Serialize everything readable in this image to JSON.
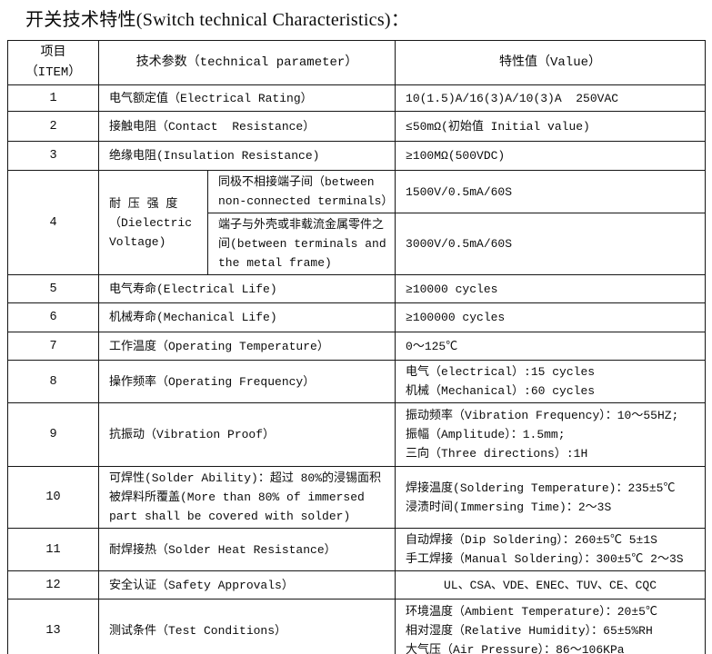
{
  "title": "开关技术特性(Switch technical Characteristics)：",
  "table": {
    "header": {
      "item": "项目\n（ITEM）",
      "param": "技术参数（technical parameter）",
      "value": "特性值（Value）"
    },
    "rows": [
      {
        "item": "1",
        "param": "电气额定值（Electrical Rating）",
        "value": "10(1.5)A/16(3)A/10(3)A  250VAC"
      },
      {
        "item": "2",
        "param": "接触电阻（Contact  Resistance）",
        "value": "≤50mΩ(初始值 Initial value)"
      },
      {
        "item": "3",
        "param": "绝缘电阻(Insulation Resistance)",
        "value": "≥100MΩ(500VDC)"
      },
      {
        "item": "4",
        "group_label": "耐 压 强 度\n（Dielectric\nVoltage)",
        "subs": [
          {
            "param": "同极不相接端子间（between non-connected terminals）",
            "value": "1500V/0.5mA/60S"
          },
          {
            "param": "端子与外壳或非载流金属零件之间(between terminals and the metal frame)",
            "value": "3000V/0.5mA/60S"
          }
        ]
      },
      {
        "item": "5",
        "param": "电气寿命(Electrical Life)",
        "value": "≥10000 cycles"
      },
      {
        "item": "6",
        "param": "机械寿命(Mechanical Life)",
        "value": "≥100000 cycles"
      },
      {
        "item": "7",
        "param": "工作温度（Operating Temperature）",
        "value": "0～125℃"
      },
      {
        "item": "8",
        "param": "操作频率（Operating Frequency）",
        "value": "电气（electrical）:15 cycles\n机械（Mechanical）:60 cycles"
      },
      {
        "item": "9",
        "param": "抗振动（Vibration Proof）",
        "value": "振动频率（Vibration Frequency）：10～55HZ;\n振幅（Amplitude）：1.5mm;\n三向（Three directions）:1H"
      },
      {
        "item": "10",
        "param": "可焊性(Solder Ability)：超过 80%的浸锡面积被焊料所覆盖(More than 80% of immersed part shall be covered with solder)",
        "value": "焊接温度(Soldering Temperature)：235±5℃\n浸渍时间(Immersing Time)：2～3S"
      },
      {
        "item": "11",
        "param": "耐焊接热（Solder Heat Resistance）",
        "value": "自动焊接（Dip Soldering）：260±5℃ 5±1S\n手工焊接（Manual Soldering）：300±5℃ 2～3S"
      },
      {
        "item": "12",
        "param": "安全认证（Safety Approvals）",
        "value": "UL、CSA、VDE、ENEC、TUV、CE、CQC"
      },
      {
        "item": "13",
        "param": "测试条件（Test Conditions）",
        "value": "环境温度（Ambient Temperature）：20±5℃\n相对湿度（Relative Humidity）：65±5%RH\n大气压（Air Pressure）：86～106KPa"
      }
    ]
  }
}
